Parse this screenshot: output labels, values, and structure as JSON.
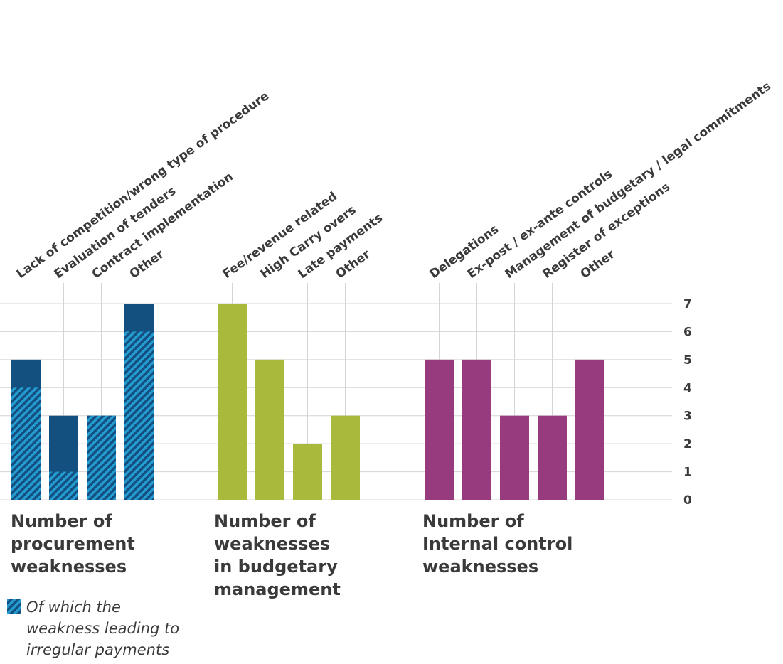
{
  "colors": {
    "procurement": "#14507f",
    "hatch": "#27a9e1",
    "budgetary": "#a9b93b",
    "internal": "#973a7e",
    "grid": "#d4d4d4",
    "text": "#3a3a3a"
  },
  "chart_data": {
    "type": "bar",
    "ylim": [
      0,
      7
    ],
    "yticks": [
      0,
      1,
      2,
      3,
      4,
      5,
      6,
      7
    ],
    "grid": true,
    "groups": [
      {
        "key": "procurement",
        "title": [
          "Number of",
          "procurement",
          "weaknesses"
        ],
        "categories": [
          "Lack of competition/wrong type of procedure",
          "Evaluation of tenders",
          "Contract implementation",
          "Other"
        ],
        "values": [
          5,
          3,
          3,
          7
        ],
        "irregular_values": [
          4,
          1,
          3,
          6
        ]
      },
      {
        "key": "budgetary",
        "title": [
          "Number of",
          "weaknesses",
          "in budgetary",
          "management"
        ],
        "categories": [
          "Fee/revenue related",
          "High Carry overs",
          "Late payments",
          "Other"
        ],
        "values": [
          7,
          5,
          2,
          3
        ]
      },
      {
        "key": "internal",
        "title": [
          "Number of",
          "Internal control",
          "weaknesses"
        ],
        "categories": [
          "Delegations",
          "Ex-post / ex-ante controls",
          "Management of budgetary / legal commitments",
          "Register of exceptions",
          "Other"
        ],
        "values": [
          5,
          5,
          3,
          3,
          5
        ]
      }
    ],
    "legend": {
      "label_lines": [
        "Of which the",
        "weakness leading to",
        "irregular payments"
      ],
      "placement": "bottom-left"
    }
  }
}
